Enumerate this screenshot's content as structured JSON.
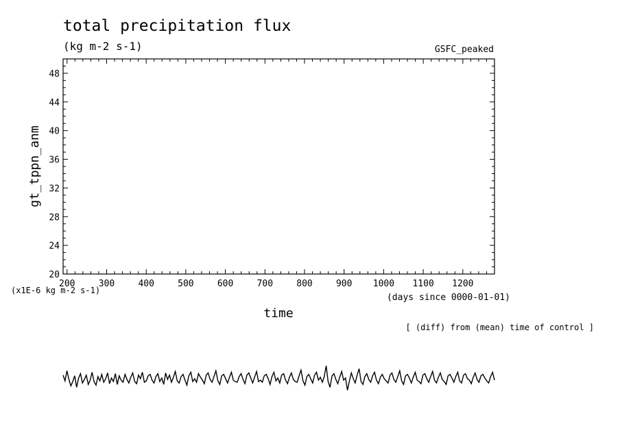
{
  "chart_data": {
    "type": "line",
    "title": "total precipitation flux",
    "units": "(kg m-2 s-1)",
    "experiment": "GSFC_peaked",
    "xlabel": "time",
    "x_units": "(days since 0000-01-01)",
    "ylabel": "gt_tppn_anm",
    "y_scale_note": "(x1E-6 kg m-2 s-1)",
    "note": "[ (diff) from (mean) time of control ]",
    "xlim": [
      190,
      1280
    ],
    "ylim": [
      20,
      50
    ],
    "x_ticks": [
      200,
      300,
      400,
      500,
      600,
      700,
      800,
      900,
      1000,
      1100,
      1200
    ],
    "y_ticks": [
      20,
      24,
      28,
      32,
      36,
      40,
      44,
      48
    ],
    "grid": false,
    "series": [
      {
        "values_note": "noisy anomaly trace, plotted values lie below the displayed y range",
        "x_start": 190,
        "x_end": 1280,
        "values": [
          5.9,
          5.1,
          6.5,
          5.3,
          4.4,
          5.0,
          5.8,
          4.2,
          5.5,
          6.1,
          4.8,
          5.3,
          5.9,
          4.6,
          5.2,
          6.3,
          5.0,
          4.5,
          5.7,
          5.1,
          6.0,
          4.9,
          5.4,
          6.2,
          4.7,
          5.5,
          5.0,
          6.1,
          4.6,
          5.8,
          5.2,
          4.9,
          6.0,
          5.3,
          4.8,
          5.6,
          6.2,
          5.0,
          4.7,
          5.9,
          5.4,
          6.3,
          4.9,
          5.1,
          5.8,
          6.0,
          5.2,
          4.8,
          5.7,
          6.1,
          5.0,
          5.5,
          4.6,
          6.2,
          5.3,
          5.9,
          4.9,
          5.6,
          6.4,
          5.1,
          4.8,
          5.7,
          6.0,
          5.2,
          4.5,
          5.8,
          6.3,
          5.0,
          5.4,
          4.9,
          6.1,
          5.6,
          5.2,
          4.7,
          5.9,
          6.2,
          5.3,
          4.9,
          5.7,
          6.5,
          5.1,
          4.6,
          5.8,
          6.0,
          5.4,
          4.8,
          5.6,
          6.3,
          5.2,
          5.0,
          4.9,
          5.7,
          6.1,
          5.3,
          4.7,
          5.9,
          6.2,
          5.5,
          4.8,
          5.6,
          6.4,
          5.0,
          5.2,
          4.9,
          5.8,
          6.0,
          5.4,
          4.6,
          5.7,
          6.3,
          5.1,
          5.5,
          4.8,
          5.9,
          6.1,
          5.2,
          4.7,
          5.6,
          6.2,
          5.3,
          5.0,
          4.9,
          5.8,
          6.6,
          5.1,
          4.5,
          5.7,
          6.0,
          5.4,
          4.8,
          5.9,
          6.3,
          5.2,
          5.6,
          4.9,
          5.7,
          7.2,
          5.0,
          4.2,
          5.8,
          6.1,
          5.3,
          4.7,
          5.6,
          6.4,
          5.2,
          5.5,
          3.8,
          5.1,
          6.2,
          5.4,
          4.8,
          5.9,
          6.8,
          5.0,
          4.6,
          5.7,
          6.1,
          5.3,
          4.9,
          5.8,
          6.3,
          5.2,
          4.7,
          5.6,
          6.0,
          5.4,
          5.1,
          4.8,
          5.9,
          6.2,
          5.3,
          4.9,
          5.7,
          6.5,
          5.1,
          4.6,
          5.8,
          6.0,
          5.5,
          4.8,
          5.6,
          6.3,
          5.2,
          5.0,
          4.7,
          5.9,
          6.1,
          5.4,
          4.9,
          5.7,
          6.4,
          5.2,
          4.8,
          5.6,
          6.2,
          5.3,
          5.0,
          4.6,
          5.8,
          6.0,
          5.5,
          4.9,
          5.7,
          6.3,
          5.1,
          4.8,
          5.9,
          6.1,
          5.4,
          5.2,
          4.7,
          5.6,
          6.2,
          5.3,
          4.9,
          5.8,
          6.0,
          5.5,
          5.1,
          4.8,
          5.7,
          6.3,
          5.2
        ]
      }
    ]
  }
}
